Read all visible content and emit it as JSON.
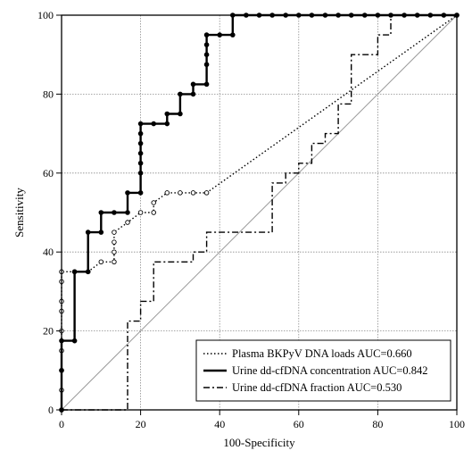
{
  "chart_data": {
    "type": "line",
    "title": "",
    "xlabel": "100-Specificity",
    "ylabel": "Sensitivity",
    "xlim": [
      0,
      100
    ],
    "ylim": [
      0,
      100
    ],
    "xticks": [
      0,
      20,
      40,
      60,
      80,
      100
    ],
    "yticks": [
      0,
      20,
      40,
      60,
      80,
      100
    ],
    "grid": true,
    "legend_position": "bottom-right",
    "reference_line": {
      "x": [
        0,
        100
      ],
      "y": [
        0,
        100
      ]
    },
    "series": [
      {
        "name": "Plasma BKPyV DNA loads AUC=0.660",
        "line_style": "dotted",
        "marker": "open-circle",
        "x": [
          0,
          0,
          0,
          0,
          0,
          0,
          0,
          0,
          0,
          3.3,
          6.7,
          10,
          13.3,
          13.3,
          13.3,
          13.3,
          16.7,
          20,
          23.3,
          23.3,
          26.7,
          30,
          33.3,
          36.7,
          100
        ],
        "y": [
          0,
          5,
          10,
          15,
          20,
          25,
          27.5,
          32.5,
          35,
          35,
          35,
          37.5,
          37.5,
          40,
          42.5,
          45,
          47.5,
          50,
          50,
          52.5,
          55,
          55,
          55,
          55,
          100
        ]
      },
      {
        "name": "Urine dd-cfDNA concentration AUC=0.842",
        "line_style": "solid",
        "marker": "filled-circle",
        "x": [
          0,
          0,
          0,
          3.3,
          3.3,
          6.7,
          6.7,
          10,
          10,
          13.3,
          16.7,
          16.7,
          20,
          20,
          20,
          20,
          20,
          20,
          20,
          23.3,
          26.7,
          26.7,
          30,
          30,
          33.3,
          33.3,
          36.7,
          36.7,
          36.7,
          36.7,
          36.7,
          40,
          43.3,
          43.3,
          46.7,
          50,
          53.3,
          56.7,
          60,
          63.3,
          66.7,
          70,
          73.3,
          76.7,
          80,
          83.3,
          86.7,
          90,
          93.3,
          96.7,
          100
        ],
        "y": [
          0,
          10,
          17.5,
          17.5,
          35,
          35,
          45,
          45,
          50,
          50,
          50,
          55,
          55,
          60,
          62.5,
          65,
          67.5,
          70,
          72.5,
          72.5,
          72.5,
          75,
          75,
          80,
          80,
          82.5,
          82.5,
          87.5,
          90,
          92.5,
          95,
          95,
          95,
          100,
          100,
          100,
          100,
          100,
          100,
          100,
          100,
          100,
          100,
          100,
          100,
          100,
          100,
          100,
          100,
          100,
          100
        ]
      },
      {
        "name": "Urine dd-cfDNA fraction AUC=0.530",
        "line_style": "dash-dot",
        "marker": "none",
        "x": [
          0,
          16.7,
          16.7,
          20,
          20,
          23.3,
          23.3,
          30,
          30,
          33.3,
          33.3,
          36.7,
          36.7,
          53.3,
          53.3,
          56.7,
          56.7,
          60,
          60,
          63.3,
          63.3,
          66.7,
          66.7,
          70,
          70,
          73.3,
          73.3,
          80,
          80,
          83.3,
          83.3,
          100
        ],
        "y": [
          0,
          0,
          22.5,
          22.5,
          27.5,
          27.5,
          37.5,
          37.5,
          37.5,
          37.5,
          40,
          40,
          45,
          45,
          57.5,
          57.5,
          60,
          60,
          62.5,
          62.5,
          67.5,
          67.5,
          70,
          70,
          77.5,
          77.5,
          90,
          90,
          95,
          95,
          100,
          100
        ]
      }
    ]
  }
}
